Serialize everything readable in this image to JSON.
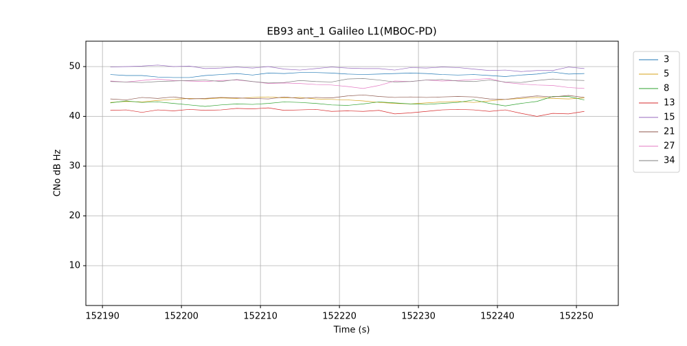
{
  "chart_data": {
    "type": "line",
    "title": "EB93 ant_1 Galileo L1(MBOC-PD)",
    "x_label": "Time (s)",
    "y_label": "CNo dB Hz",
    "x": [
      152191,
      152193,
      152195,
      152197,
      152199,
      152201,
      152203,
      152205,
      152207,
      152209,
      152211,
      152213,
      152215,
      152217,
      152219,
      152221,
      152223,
      152225,
      152227,
      152229,
      152231,
      152233,
      152235,
      152237,
      152239,
      152241,
      152243,
      152245,
      152247,
      152249,
      152251
    ],
    "series": [
      {
        "name": "3",
        "color": "#1f77b4",
        "values": [
          48.4,
          48.2,
          48.2,
          47.9,
          47.8,
          47.8,
          48.2,
          48.4,
          48.6,
          48.3,
          48.7,
          48.6,
          48.8,
          48.8,
          48.7,
          48.5,
          48.4,
          48.5,
          48.6,
          48.7,
          48.6,
          48.4,
          48.3,
          48.4,
          48.2,
          48.0,
          48.3,
          48.5,
          48.9,
          48.5,
          48.6
        ]
      },
      {
        "name": "5",
        "color": "#d4a017",
        "values": [
          42.8,
          43.0,
          42.9,
          43.2,
          43.4,
          43.6,
          43.5,
          43.7,
          43.6,
          43.8,
          43.9,
          43.7,
          43.8,
          43.5,
          43.4,
          43.3,
          43.1,
          42.8,
          42.6,
          42.5,
          42.7,
          42.9,
          43.0,
          42.8,
          43.1,
          43.4,
          43.6,
          43.8,
          43.6,
          43.5,
          43.7
        ]
      },
      {
        "name": "8",
        "color": "#2ca02c",
        "values": [
          42.7,
          43.1,
          42.8,
          42.9,
          42.6,
          42.3,
          42.0,
          42.3,
          42.5,
          42.4,
          42.6,
          42.9,
          42.8,
          42.6,
          42.3,
          42.2,
          42.5,
          42.9,
          42.7,
          42.5,
          42.4,
          42.6,
          42.8,
          43.3,
          42.6,
          42.1,
          42.6,
          43.0,
          44.0,
          44.0,
          43.3
        ]
      },
      {
        "name": "13",
        "color": "#d62728",
        "values": [
          41.2,
          41.3,
          40.8,
          41.3,
          41.1,
          41.4,
          41.2,
          41.3,
          41.6,
          41.5,
          41.7,
          41.2,
          41.3,
          41.4,
          41.0,
          41.1,
          41.0,
          41.2,
          40.5,
          40.7,
          41.0,
          41.3,
          41.4,
          41.3,
          41.0,
          41.3,
          40.6,
          40.0,
          40.6,
          40.5,
          41.0
        ]
      },
      {
        "name": "15",
        "color": "#9467bd",
        "values": [
          49.9,
          50.0,
          50.1,
          50.3,
          50.0,
          50.1,
          49.6,
          49.7,
          49.9,
          49.7,
          50.0,
          49.5,
          49.3,
          49.6,
          49.9,
          49.7,
          49.6,
          49.6,
          49.3,
          49.8,
          49.7,
          49.9,
          49.8,
          49.5,
          49.2,
          49.3,
          49.0,
          49.2,
          49.2,
          49.9,
          49.6
        ]
      },
      {
        "name": "21",
        "color": "#8c564b",
        "values": [
          43.5,
          43.3,
          43.8,
          43.6,
          43.9,
          43.5,
          43.6,
          43.8,
          43.7,
          43.6,
          43.5,
          43.9,
          43.6,
          43.8,
          43.7,
          44.1,
          44.3,
          44.0,
          43.8,
          43.9,
          43.8,
          43.9,
          44.0,
          43.9,
          43.5,
          43.4,
          43.8,
          44.1,
          43.9,
          44.2,
          43.8
        ]
      },
      {
        "name": "27",
        "color": "#e377c2",
        "values": [
          47.1,
          46.9,
          47.2,
          47.5,
          47.2,
          47.1,
          47.0,
          47.2,
          47.3,
          47.0,
          46.6,
          46.7,
          46.6,
          46.4,
          46.3,
          46.0,
          45.6,
          46.2,
          47.1,
          47.0,
          47.3,
          47.1,
          47.2,
          47.4,
          47.6,
          46.8,
          46.5,
          46.3,
          46.2,
          45.8,
          45.6
        ]
      },
      {
        "name": "34",
        "color": "#7f7f7f",
        "values": [
          47.0,
          46.9,
          46.8,
          47.0,
          47.1,
          47.2,
          47.3,
          47.0,
          47.4,
          47.0,
          46.7,
          46.8,
          47.2,
          47.0,
          46.9,
          47.5,
          47.6,
          47.3,
          46.9,
          47.0,
          47.3,
          47.4,
          47.1,
          47.0,
          47.3,
          46.9,
          46.8,
          47.2,
          47.5,
          47.3,
          47.2
        ]
      }
    ],
    "xlim": [
      152187.9,
      152255.3
    ],
    "ylim": [
      2.0,
      55.1
    ],
    "xticks": [
      152190,
      152200,
      152210,
      152220,
      152230,
      152240,
      152250
    ],
    "yticks": [
      10,
      20,
      30,
      40,
      50
    ],
    "grid": true,
    "legend": "outside-right"
  }
}
